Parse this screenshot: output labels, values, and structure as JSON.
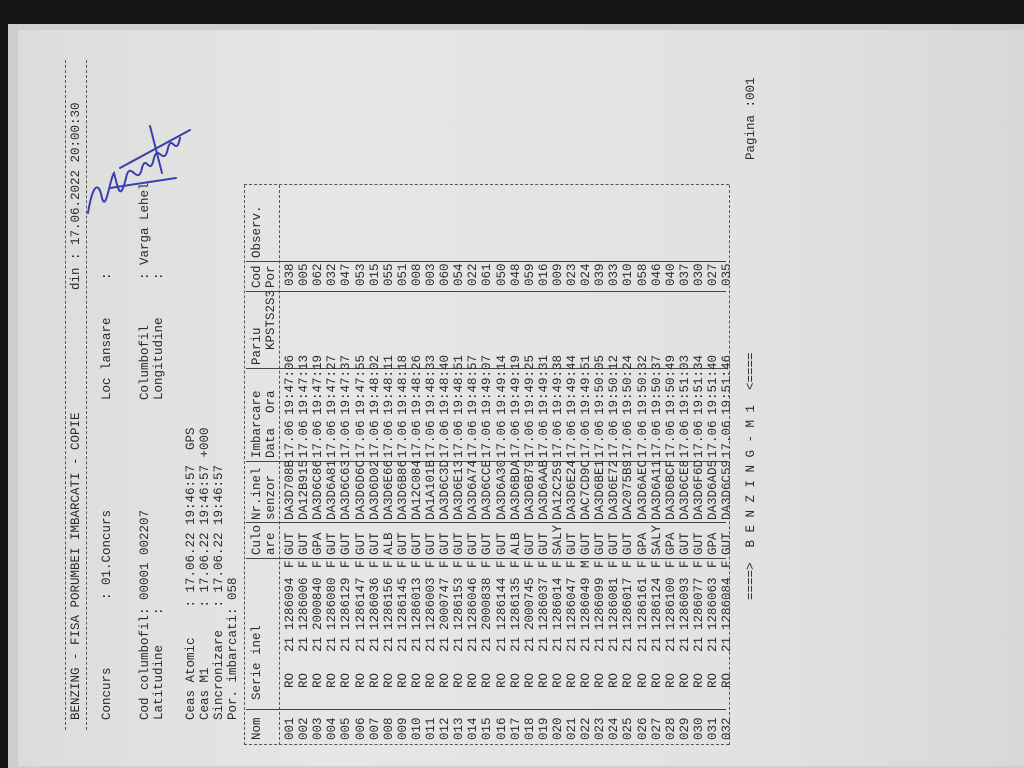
{
  "header": {
    "title": "BENZING - FISA PORUMBEI IMBARCATI - COPIE",
    "date_label": "din : 17.06.2022 20:00:30",
    "concurs_label": "Concurs",
    "concurs_value": ": 01.Concurs",
    "loc_lansare_label": "Loc lansare",
    "loc_lansare_value": ":",
    "cod_columbofil_label": "Cod columbofil:",
    "cod_columbofil_value": "00001 002207",
    "latitudine_label": "Latitudine",
    "latitudine_value": ":",
    "columbofil_label": "Columbofil",
    "columbofil_value": ": Varga Lehel",
    "longitudine_label": "Longitudine",
    "longitudine_value": ":",
    "ceas_atomic": "Ceas Atomic    : 17.06.22 19:46:57  GPS",
    "ceas_m1": "Ceas M1        : 17.06.22 19:46:57 +000",
    "sincronizare": "Sincronizare   : 17.06.22 19:46:57",
    "por_imbarcati": "Por. imbarcati: 058"
  },
  "table": {
    "columns": {
      "nom": "Nom",
      "serie": "Serie inel",
      "culoare_1": "Culo",
      "culoare_2": "are",
      "senzor_1": "Nr.inel",
      "senzor_2": "senzor",
      "imbarcare_1": "Imbarcare",
      "imbarcare_2": "Data  Ora",
      "pariu_1": "Pariu",
      "pariu_2": "KPSTS2S3",
      "cod_1": "Cod",
      "cod_2": "Por",
      "observ": "Observ."
    },
    "rows": [
      [
        "001",
        "RO",
        "21",
        "1286094",
        "F",
        "GUT",
        "DA3D708B",
        "17.06",
        "19:47:06",
        "038"
      ],
      [
        "002",
        "RO",
        "21",
        "1286006",
        "F",
        "GUT",
        "DA12B915",
        "17.06",
        "19:47:13",
        "005"
      ],
      [
        "003",
        "RO",
        "21",
        "2000840",
        "F",
        "GPA",
        "DA3D6C86",
        "17.06",
        "19:47:19",
        "062"
      ],
      [
        "004",
        "RO",
        "21",
        "1286080",
        "F",
        "GUT",
        "DA3D6A81",
        "17.06",
        "19:47:27",
        "032"
      ],
      [
        "005",
        "RO",
        "21",
        "1286129",
        "F",
        "GUT",
        "DA3D6C63",
        "17.06",
        "19:47:37",
        "047"
      ],
      [
        "006",
        "RO",
        "21",
        "1286147",
        "F",
        "GUT",
        "DA3D6D6C",
        "17.06",
        "19:47:55",
        "053"
      ],
      [
        "007",
        "RO",
        "21",
        "1286036",
        "F",
        "GUT",
        "DA3D6D02",
        "17.06",
        "19:48:02",
        "015"
      ],
      [
        "008",
        "RO",
        "21",
        "1286156",
        "F",
        "ALB",
        "DA3D6E66",
        "17.06",
        "19:48:11",
        "055"
      ],
      [
        "009",
        "RO",
        "21",
        "1286145",
        "F",
        "GUT",
        "DA3D6B86",
        "17.06",
        "19:48:18",
        "051"
      ],
      [
        "010",
        "RO",
        "21",
        "1286013",
        "F",
        "GUT",
        "DA12C084",
        "17.06",
        "19:48:26",
        "008"
      ],
      [
        "011",
        "RO",
        "21",
        "1286003",
        "F",
        "GUT",
        "DA1A101B",
        "17.06",
        "19:48:33",
        "003"
      ],
      [
        "012",
        "RO",
        "21",
        "2000747",
        "F",
        "GUT",
        "DA3D6C3D",
        "17.06",
        "19:48:40",
        "060"
      ],
      [
        "013",
        "RO",
        "21",
        "1286153",
        "F",
        "GUT",
        "DA3D6E13",
        "17.06",
        "19:48:51",
        "054"
      ],
      [
        "014",
        "RO",
        "21",
        "1286046",
        "F",
        "GUT",
        "DA3D6A74",
        "17.06",
        "19:48:57",
        "022"
      ],
      [
        "015",
        "RO",
        "21",
        "2000838",
        "F",
        "GUT",
        "DA3D6CCE",
        "17.06",
        "19:49:07",
        "061"
      ],
      [
        "016",
        "RO",
        "21",
        "1286144",
        "F",
        "GUT",
        "DA3D6A30",
        "17.06",
        "19:49:14",
        "050"
      ],
      [
        "017",
        "RO",
        "21",
        "1286135",
        "F",
        "ALB",
        "DA3D6BDA",
        "17.06",
        "19:49:19",
        "048"
      ],
      [
        "018",
        "RO",
        "21",
        "2000745",
        "F",
        "GUT",
        "DA3D6B79",
        "17.06",
        "19:49:25",
        "059"
      ],
      [
        "019",
        "RO",
        "21",
        "1286037",
        "F",
        "GUT",
        "DA3D6AAB",
        "17.06",
        "19:49:31",
        "016"
      ],
      [
        "020",
        "RO",
        "21",
        "1286014",
        "F",
        "SALY",
        "DA12C259",
        "17.06",
        "19:49:38",
        "009"
      ],
      [
        "021",
        "RO",
        "21",
        "1286047",
        "F",
        "GUT",
        "DA3D6E24",
        "17.06",
        "19:49:44",
        "023"
      ],
      [
        "022",
        "RO",
        "21",
        "1286049",
        "M",
        "GUT",
        "DAC7CD9C",
        "17.06",
        "19:49:51",
        "024"
      ],
      [
        "023",
        "RO",
        "21",
        "1286099",
        "F",
        "GUT",
        "DA3D6BE1",
        "17.06",
        "19:50:05",
        "039"
      ],
      [
        "024",
        "RO",
        "21",
        "1286081",
        "F",
        "GUT",
        "DA3D6E72",
        "17.06",
        "19:50:12",
        "033"
      ],
      [
        "025",
        "RO",
        "21",
        "1286017",
        "F",
        "GUT",
        "DA2075B9",
        "17.06",
        "19:50:24",
        "010"
      ],
      [
        "026",
        "RO",
        "21",
        "1286161",
        "F",
        "GPA",
        "DA3D6AEC",
        "17.06",
        "19:50:32",
        "058"
      ],
      [
        "027",
        "RO",
        "21",
        "1286124",
        "F",
        "SALY",
        "DA3D6A11",
        "17.06",
        "19:50:37",
        "046"
      ],
      [
        "028",
        "RO",
        "21",
        "1286100",
        "F",
        "GPA",
        "DA3D6BCF",
        "17.06",
        "19:50:49",
        "040"
      ],
      [
        "029",
        "RO",
        "21",
        "1286093",
        "F",
        "GUT",
        "DA3D6CE8",
        "17.06",
        "19:51:03",
        "037"
      ],
      [
        "030",
        "RO",
        "21",
        "1286077",
        "F",
        "GUT",
        "DA3D6F6D",
        "17.06",
        "19:51:34",
        "030"
      ],
      [
        "031",
        "RO",
        "21",
        "1286063",
        "F",
        "GPA",
        "DA3D6AD5",
        "17.06",
        "19:51:40",
        "027"
      ],
      [
        "032",
        "RO",
        "21",
        "1286084",
        "F",
        "GUT",
        "DA3D6C59",
        "17.06",
        "19:51:46",
        "035"
      ]
    ]
  },
  "footer": {
    "banner": "====>  B E N Z I N G - M 1  <====",
    "page": "Pagina :001"
  },
  "colors": {
    "ink": "#2b2b2b",
    "signature": "#3a3fb0",
    "paper": "#e2e2e0"
  }
}
